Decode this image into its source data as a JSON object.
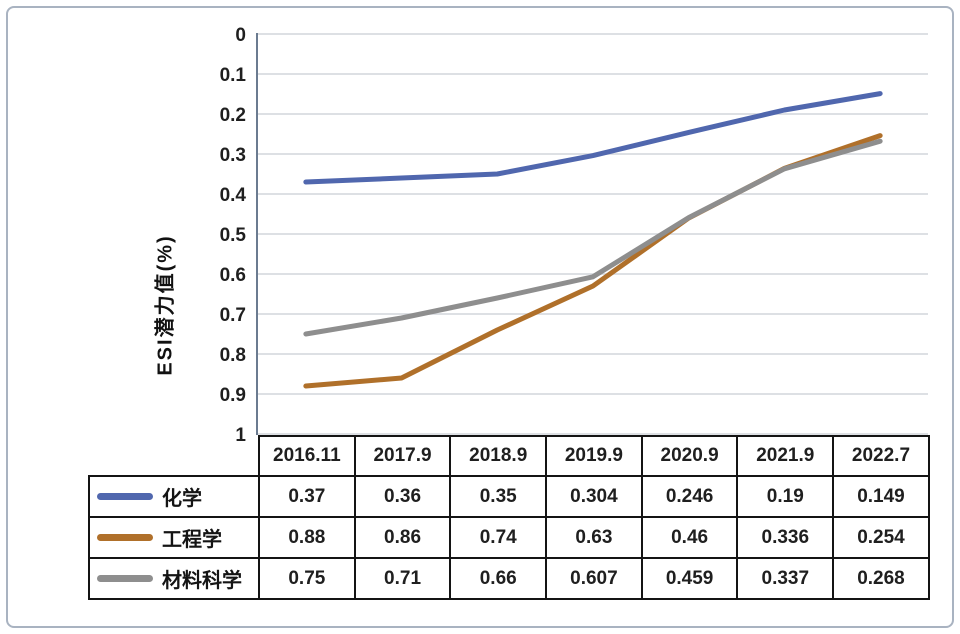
{
  "figure": {
    "y_axis_title": "ESI潜力值(%)"
  },
  "chart_data": {
    "type": "line",
    "title": "",
    "xlabel": "",
    "ylabel": "ESI潜力值(%)",
    "x_categories": [
      "2016.11",
      "2017.9",
      "2018.9",
      "2019.9",
      "2020.9",
      "2021.9",
      "2022.7"
    ],
    "y_ticks": [
      "0",
      "0.1",
      "0.2",
      "0.3",
      "0.4",
      "0.5",
      "0.6",
      "0.7",
      "0.8",
      "0.9",
      "1"
    ],
    "ylim": [
      0,
      1
    ],
    "y_axis_inverted": true,
    "grid": "horizontal",
    "legend_position": "table-left-column",
    "colors": {
      "grid": "#d2d5db",
      "axis": "#6b7b90",
      "text": "#1f1f1f",
      "table_border": "#141414"
    },
    "series": [
      {
        "name": "化学",
        "color": "#5067ae",
        "values": [
          0.37,
          0.36,
          0.35,
          0.304,
          0.246,
          0.19,
          0.149
        ]
      },
      {
        "name": "工程学",
        "color": "#b0702a",
        "values": [
          0.88,
          0.86,
          0.74,
          0.63,
          0.46,
          0.336,
          0.254
        ]
      },
      {
        "name": "材料科学",
        "color": "#8e8e8e",
        "values": [
          0.75,
          0.71,
          0.66,
          0.607,
          0.459,
          0.337,
          0.268
        ]
      }
    ]
  }
}
